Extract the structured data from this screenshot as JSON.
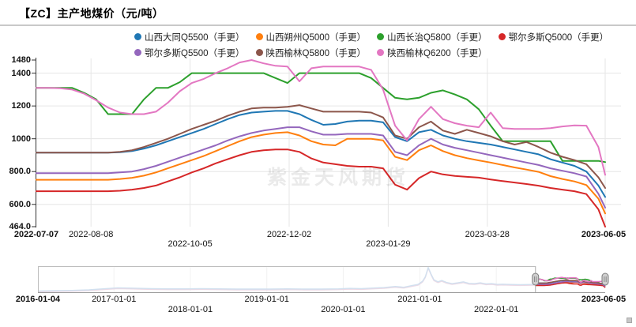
{
  "title": "【ZC】主产地煤价（元/吨）",
  "watermark": "紫金天风期货",
  "legend": {
    "items": [
      {
        "label": "山西大同Q5500（手更）",
        "color": "#1f77b4"
      },
      {
        "label": "山西朔州Q5000（手更）",
        "color": "#ff7f0e"
      },
      {
        "label": "山西长治Q5800（手更）",
        "color": "#2ca02c"
      },
      {
        "label": "鄂尔多斯Q5000（手更）",
        "color": "#d62728"
      },
      {
        "label": "鄂尔多斯Q5500（手更）",
        "color": "#9467bd"
      },
      {
        "label": "陕西榆林Q5800（手更）",
        "color": "#8c564b"
      },
      {
        "label": "陕西榆林Q6200（手更）",
        "color": "#e377c2"
      }
    ]
  },
  "chart_data": {
    "type": "line",
    "title": "【ZC】主产地煤价（元/吨）",
    "ylabel": "元/吨",
    "ylim": [
      464.0,
      1480
    ],
    "grid": true,
    "y_ticks": [
      {
        "label": "1480",
        "value": 1480,
        "grid": false
      },
      {
        "label": "1400",
        "value": 1400,
        "grid": true
      },
      {
        "label": "1200",
        "value": 1200,
        "grid": true
      },
      {
        "label": "1000",
        "value": 1000,
        "grid": true
      },
      {
        "label": "800.0",
        "value": 800,
        "grid": true
      },
      {
        "label": "600.0",
        "value": 600,
        "grid": true
      },
      {
        "label": "464.0",
        "value": 464,
        "grid": false
      }
    ],
    "x_ticks": [
      {
        "label": "2022-07-07",
        "row": 0,
        "bold": true
      },
      {
        "label": "2022-08-08",
        "row": 0,
        "bold": false
      },
      {
        "label": "2022-10-05",
        "row": 1,
        "bold": false
      },
      {
        "label": "2022-12-02",
        "row": 0,
        "bold": false
      },
      {
        "label": "2023-01-29",
        "row": 1,
        "bold": false
      },
      {
        "label": "2023-03-28",
        "row": 0,
        "bold": false
      },
      {
        "label": "2023-06-05",
        "row": 0,
        "bold": true
      }
    ],
    "dates": [
      "2022-07-07",
      "2022-07-14",
      "2022-07-21",
      "2022-07-28",
      "2022-08-04",
      "2022-08-11",
      "2022-08-18",
      "2022-08-25",
      "2022-09-01",
      "2022-09-08",
      "2022-09-15",
      "2022-09-22",
      "2022-09-29",
      "2022-10-06",
      "2022-10-13",
      "2022-10-20",
      "2022-10-27",
      "2022-11-03",
      "2022-11-10",
      "2022-11-17",
      "2022-11-24",
      "2022-12-01",
      "2022-12-08",
      "2022-12-15",
      "2022-12-22",
      "2022-12-29",
      "2023-01-05",
      "2023-01-12",
      "2023-01-19",
      "2023-01-26",
      "2023-02-02",
      "2023-02-09",
      "2023-02-16",
      "2023-02-23",
      "2023-03-02",
      "2023-03-09",
      "2023-03-16",
      "2023-03-23",
      "2023-03-30",
      "2023-04-06",
      "2023-04-13",
      "2023-04-20",
      "2023-04-27",
      "2023-05-04",
      "2023-05-11",
      "2023-05-18",
      "2023-05-25",
      "2023-06-01",
      "2023-06-05"
    ],
    "series": [
      {
        "name": "山西大同Q5500（手更）",
        "color": "#1f77b4",
        "values": [
          915,
          915,
          915,
          915,
          915,
          915,
          915,
          918,
          925,
          940,
          960,
          985,
          1010,
          1035,
          1060,
          1090,
          1120,
          1145,
          1160,
          1165,
          1170,
          1170,
          1150,
          1115,
          1085,
          1090,
          1105,
          1110,
          1110,
          1100,
          1010,
          985,
          1040,
          1055,
          1020,
          1000,
          985,
          975,
          965,
          950,
          935,
          920,
          905,
          875,
          855,
          835,
          800,
          715,
          645
        ]
      },
      {
        "name": "山西朔州Q5000（手更）",
        "color": "#ff7f0e",
        "values": [
          750,
          750,
          750,
          750,
          750,
          750,
          750,
          755,
          762,
          775,
          795,
          820,
          845,
          870,
          895,
          925,
          955,
          985,
          1010,
          1025,
          1035,
          1040,
          1020,
          985,
          965,
          960,
          1000,
          1000,
          1000,
          990,
          890,
          870,
          930,
          960,
          925,
          900,
          882,
          868,
          855,
          840,
          825,
          812,
          798,
          772,
          755,
          740,
          718,
          635,
          545
        ]
      },
      {
        "name": "山西长治Q5800（手更）",
        "color": "#2ca02c",
        "values": [
          1310,
          1310,
          1310,
          1310,
          1280,
          1240,
          1150,
          1150,
          1150,
          1240,
          1310,
          1310,
          1345,
          1400,
          1400,
          1400,
          1400,
          1400,
          1400,
          1400,
          1370,
          1340,
          1400,
          1400,
          1400,
          1400,
          1400,
          1400,
          1370,
          1310,
          1250,
          1240,
          1250,
          1280,
          1295,
          1270,
          1240,
          1180,
          1080,
          985,
          985,
          985,
          985,
          985,
          865,
          865,
          865,
          865,
          858
        ]
      },
      {
        "name": "鄂尔多斯Q5000（手更）",
        "color": "#d62728",
        "values": [
          680,
          680,
          680,
          680,
          680,
          680,
          680,
          683,
          690,
          700,
          715,
          740,
          765,
          795,
          820,
          850,
          875,
          900,
          920,
          930,
          935,
          935,
          920,
          880,
          855,
          845,
          835,
          830,
          830,
          820,
          720,
          690,
          760,
          800,
          783,
          773,
          768,
          763,
          752,
          742,
          733,
          724,
          714,
          700,
          690,
          680,
          663,
          570,
          464
        ]
      },
      {
        "name": "鄂尔多斯Q5500（手更）",
        "color": "#9467bd",
        "values": [
          790,
          790,
          790,
          790,
          790,
          790,
          790,
          795,
          800,
          815,
          835,
          860,
          885,
          910,
          935,
          960,
          990,
          1015,
          1035,
          1050,
          1060,
          1070,
          1070,
          1045,
          1025,
          1025,
          1030,
          1030,
          1030,
          1020,
          920,
          900,
          960,
          1000,
          965,
          945,
          930,
          915,
          900,
          885,
          870,
          855,
          840,
          820,
          805,
          790,
          770,
          665,
          580
        ]
      },
      {
        "name": "陕西榆林Q5800（手更）",
        "color": "#8c564b",
        "values": [
          915,
          915,
          915,
          915,
          915,
          915,
          915,
          920,
          930,
          950,
          975,
          1000,
          1030,
          1060,
          1085,
          1110,
          1140,
          1165,
          1185,
          1190,
          1190,
          1195,
          1205,
          1185,
          1165,
          1165,
          1165,
          1165,
          1160,
          1130,
          1020,
          1000,
          1070,
          1105,
          1050,
          1030,
          1055,
          1035,
          1015,
          985,
          965,
          980,
          950,
          915,
          890,
          870,
          845,
          765,
          700
        ]
      },
      {
        "name": "陕西榆林Q6200（手更）",
        "color": "#e377c2",
        "values": [
          1310,
          1310,
          1308,
          1300,
          1275,
          1235,
          1190,
          1160,
          1150,
          1150,
          1165,
          1220,
          1290,
          1340,
          1365,
          1400,
          1430,
          1465,
          1480,
          1460,
          1445,
          1440,
          1350,
          1430,
          1440,
          1440,
          1440,
          1440,
          1420,
          1300,
          1080,
          990,
          1120,
          1195,
          1120,
          1095,
          1080,
          1070,
          1160,
          1065,
          1060,
          1060,
          1060,
          1065,
          1075,
          1082,
          1080,
          950,
          780
        ]
      }
    ]
  },
  "navigator": {
    "range": {
      "start": "2016-01-04",
      "end": "2023-06-05"
    },
    "selection": {
      "start": "2022-07-07",
      "end": "2023-06-05"
    },
    "x_ticks": [
      {
        "label": "2016-01-04",
        "row": 0,
        "bold": true
      },
      {
        "label": "2017-01-01",
        "row": 0,
        "bold": false
      },
      {
        "label": "2018-01-01",
        "row": 1,
        "bold": false
      },
      {
        "label": "2019-01-01",
        "row": 0,
        "bold": false
      },
      {
        "label": "2020-01-01",
        "row": 1,
        "bold": false
      },
      {
        "label": "2021-01-01",
        "row": 0,
        "bold": false
      },
      {
        "label": "2022-01-01",
        "row": 1,
        "bold": false
      },
      {
        "label": "2023-06-05",
        "row": 0,
        "bold": true
      }
    ],
    "value_max": 2600,
    "history_line": [
      [
        0,
        0.05
      ],
      [
        0.03,
        0.06
      ],
      [
        0.06,
        0.07
      ],
      [
        0.09,
        0.09
      ],
      [
        0.12,
        0.14
      ],
      [
        0.14,
        0.17
      ],
      [
        0.16,
        0.16
      ],
      [
        0.18,
        0.15
      ],
      [
        0.2,
        0.14
      ],
      [
        0.23,
        0.13
      ],
      [
        0.26,
        0.13
      ],
      [
        0.29,
        0.14
      ],
      [
        0.32,
        0.13
      ],
      [
        0.35,
        0.12
      ],
      [
        0.38,
        0.12
      ],
      [
        0.41,
        0.12
      ],
      [
        0.44,
        0.13
      ],
      [
        0.47,
        0.12
      ],
      [
        0.5,
        0.12
      ],
      [
        0.53,
        0.13
      ],
      [
        0.55,
        0.15
      ],
      [
        0.57,
        0.14
      ],
      [
        0.59,
        0.16
      ],
      [
        0.61,
        0.18
      ],
      [
        0.63,
        0.22
      ],
      [
        0.645,
        0.19
      ],
      [
        0.66,
        0.26
      ],
      [
        0.67,
        0.3
      ],
      [
        0.678,
        0.42
      ],
      [
        0.683,
        0.6
      ],
      [
        0.688,
        0.95
      ],
      [
        0.693,
        0.7
      ],
      [
        0.698,
        0.48
      ],
      [
        0.705,
        0.4
      ],
      [
        0.712,
        0.45
      ],
      [
        0.72,
        0.38
      ],
      [
        0.73,
        0.33
      ],
      [
        0.74,
        0.36
      ],
      [
        0.75,
        0.4
      ],
      [
        0.76,
        0.34
      ],
      [
        0.77,
        0.33
      ],
      [
        0.78,
        0.36
      ],
      [
        0.79,
        0.32
      ],
      [
        0.8,
        0.33
      ],
      [
        0.81,
        0.3
      ],
      [
        0.82,
        0.31
      ],
      [
        0.83,
        0.3
      ],
      [
        0.85,
        0.29
      ],
      [
        0.875,
        0.3
      ]
    ]
  }
}
